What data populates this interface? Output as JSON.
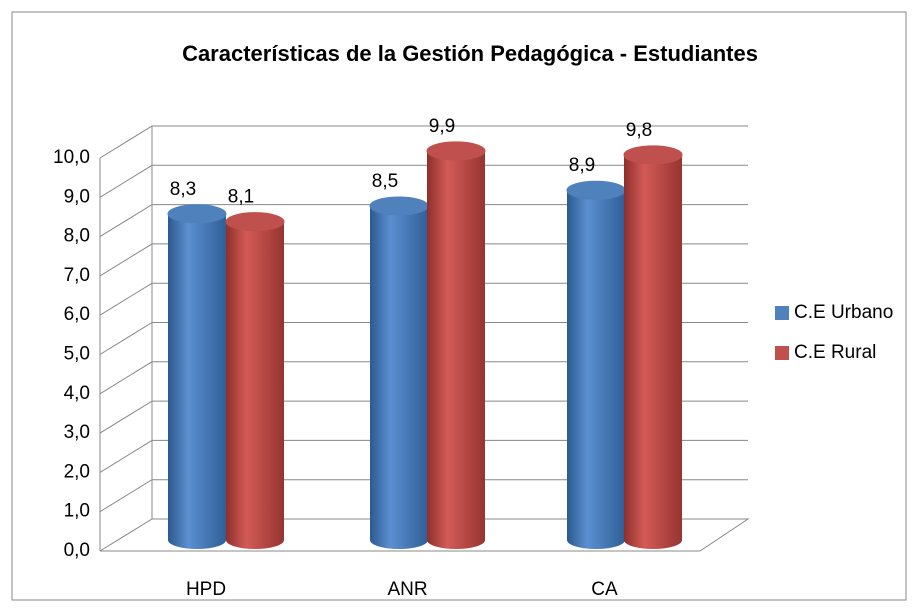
{
  "chart_data": {
    "type": "bar3d",
    "title": "Características de la Gestión Pedagógica - Estudiantes",
    "categories": [
      "HPD",
      "ANR",
      "CA"
    ],
    "series": [
      {
        "name": "C.E Urbano",
        "color": "#4f81bd",
        "values": [
          8.3,
          8.5,
          8.9
        ],
        "value_labels": [
          "8,3",
          "8,5",
          "8,9"
        ]
      },
      {
        "name": "C.E Rural",
        "color": "#c0504d",
        "values": [
          8.1,
          9.9,
          9.8
        ],
        "value_labels": [
          "8,1",
          "9,9",
          "9,8"
        ]
      }
    ],
    "ylim": [
      0,
      10
    ],
    "yticks": [
      {
        "value": 0,
        "label": "0,0"
      },
      {
        "value": 1,
        "label": "1,0"
      },
      {
        "value": 2,
        "label": "2,0"
      },
      {
        "value": 3,
        "label": "3,0"
      },
      {
        "value": 4,
        "label": "4,0"
      },
      {
        "value": 5,
        "label": "5,0"
      },
      {
        "value": 6,
        "label": "6,0"
      },
      {
        "value": 7,
        "label": "7,0"
      },
      {
        "value": 8,
        "label": "8,0"
      },
      {
        "value": 9,
        "label": "9,0"
      },
      {
        "value": 10,
        "label": "10,0"
      }
    ],
    "grid": true,
    "legend": "right"
  }
}
